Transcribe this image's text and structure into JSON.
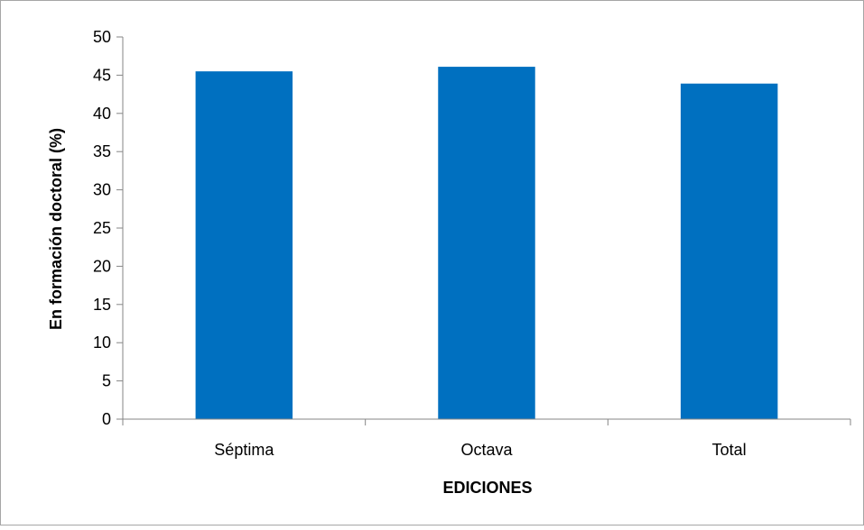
{
  "chart_data": {
    "type": "bar",
    "title": "",
    "xlabel": "EDICIONES",
    "ylabel": "En formación doctoral (%)",
    "categories": [
      "Séptima",
      "Octava",
      "Total"
    ],
    "values": [
      45.5,
      46.1,
      43.9
    ],
    "ylim": [
      0,
      50
    ],
    "yticks": [
      0,
      5,
      10,
      15,
      20,
      25,
      30,
      35,
      40,
      45,
      50
    ],
    "bar_color": "#0070C0",
    "grid": false,
    "legend": "none"
  }
}
